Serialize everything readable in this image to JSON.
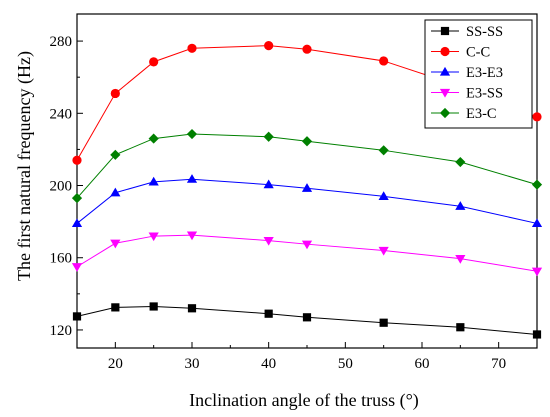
{
  "chart_data": {
    "type": "line",
    "title": "",
    "xlabel": "Inclination angle of the truss (°)",
    "ylabel": "The first natural frequency (Hz)",
    "xlim": [
      15,
      75
    ],
    "ylim": [
      110,
      295
    ],
    "xticks": [
      20,
      30,
      40,
      50,
      60,
      70
    ],
    "yticks": [
      120,
      160,
      200,
      240,
      280
    ],
    "grid": false,
    "legend_position": "top-right",
    "x": [
      15,
      20,
      25,
      30,
      40,
      45,
      55,
      65,
      75
    ],
    "series": [
      {
        "name": "SS-SS",
        "color": "#000000",
        "marker": "square",
        "values": [
          127.5,
          132.5,
          133,
          132,
          129,
          127,
          124,
          121.5,
          117.5
        ]
      },
      {
        "name": "C-C",
        "color": "#ff0000",
        "marker": "circle",
        "values": [
          214,
          251,
          268.5,
          276,
          277.5,
          275.5,
          269,
          255,
          238
        ]
      },
      {
        "name": "E3-E3",
        "color": "#0000ff",
        "marker": "triangle-up",
        "values": [
          179,
          196,
          202,
          203.5,
          200.5,
          198.5,
          194,
          188.5,
          179
        ]
      },
      {
        "name": "E3-SS",
        "color": "#ff00ff",
        "marker": "triangle-down",
        "values": [
          155,
          168,
          172,
          172.5,
          169.5,
          167.5,
          164,
          159.5,
          152.5
        ]
      },
      {
        "name": "E3-C",
        "color": "#008000",
        "marker": "diamond",
        "values": [
          193,
          217,
          226,
          228.5,
          227,
          224.5,
          219.5,
          213,
          200.5
        ]
      }
    ]
  }
}
